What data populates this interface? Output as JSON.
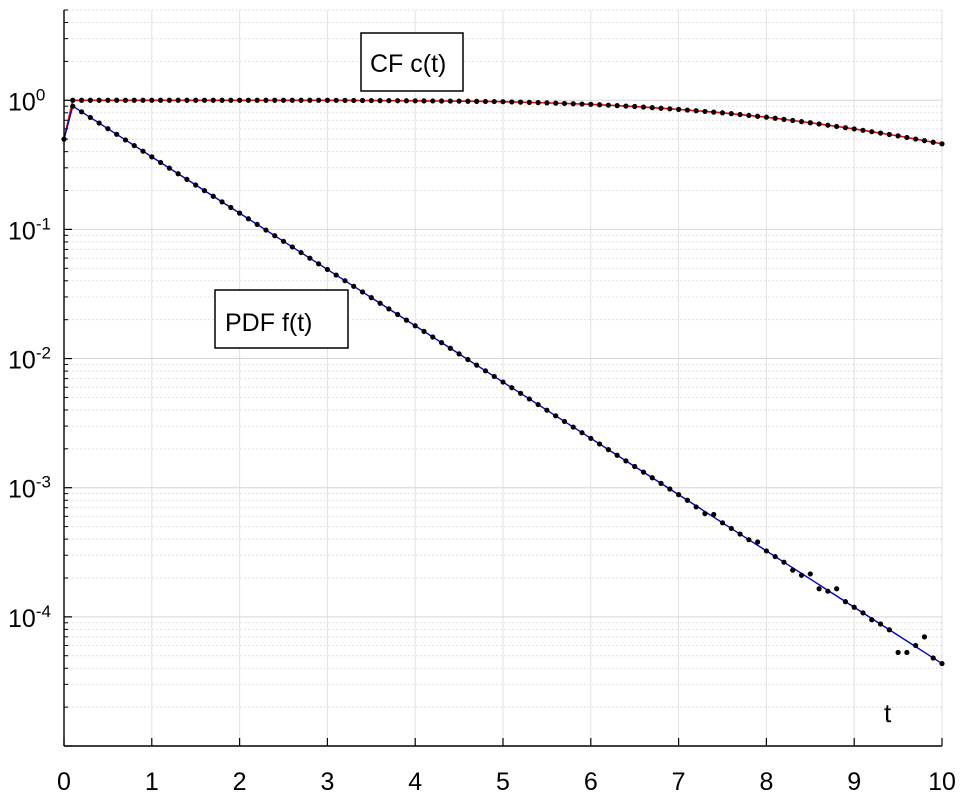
{
  "chart_data": {
    "type": "line",
    "title": "",
    "xlabel": "t",
    "ylabel": "",
    "xlim": [
      0,
      10
    ],
    "ylim": [
      1e-05,
      5
    ],
    "yscale": "log",
    "grid": true,
    "minor_grid": true,
    "x_ticks": [
      "0",
      "1",
      "2",
      "3",
      "4",
      "5",
      "6",
      "7",
      "8",
      "9",
      "10"
    ],
    "y_ticks": [
      {
        "value": 1,
        "base": "10",
        "exp": "0"
      },
      {
        "value": 0.1,
        "base": "10",
        "exp": "-1"
      },
      {
        "value": 0.01,
        "base": "10",
        "exp": "-2"
      },
      {
        "value": 0.001,
        "base": "10",
        "exp": "-3"
      },
      {
        "value": 0.0001,
        "base": "10",
        "exp": "-4"
      }
    ],
    "annotations": [
      {
        "text": "CF c(t)",
        "target": "CF"
      },
      {
        "text": "PDF f(t)",
        "target": "PDF"
      }
    ],
    "series": [
      {
        "id": "CF",
        "color": "#ff0000",
        "marker_color": "#000000",
        "x": [
          0,
          0.1,
          0.5,
          1,
          1.5,
          2,
          2.5,
          3,
          3.5,
          4,
          4.5,
          5,
          5.5,
          6,
          6.5,
          7,
          7.5,
          8,
          8.5,
          9,
          9.5,
          10
        ],
        "y": [
          0.5,
          1.0,
          1.0,
          1.0,
          1.0,
          1.0,
          1.0,
          1.0,
          0.995,
          0.99,
          0.985,
          0.975,
          0.955,
          0.93,
          0.895,
          0.85,
          0.8,
          0.74,
          0.67,
          0.6,
          0.53,
          0.46
        ]
      },
      {
        "id": "PDF",
        "color": "#0000cc",
        "marker_color": "#000000",
        "x": [
          0,
          0.1,
          0.5,
          1,
          1.5,
          2,
          2.5,
          3,
          3.5,
          4,
          4.5,
          5,
          5.5,
          6,
          6.5,
          7,
          7.5,
          8,
          8.5,
          9,
          9.5,
          10
        ],
        "y": [
          0.5,
          0.9,
          0.6,
          0.36,
          0.22,
          0.132,
          0.079,
          0.048,
          0.029,
          0.0176,
          0.0107,
          0.0065,
          0.0039,
          0.0024,
          0.00145,
          0.00088,
          0.00053,
          0.00032,
          0.000195,
          0.000118,
          7.2e-05,
          4.35e-05
        ]
      }
    ],
    "markers": {
      "CF": {
        "x": [
          0,
          0.1,
          0.2,
          0.3,
          0.4,
          0.5,
          0.6,
          0.7,
          0.8,
          0.9,
          1,
          1.1,
          1.2,
          1.3,
          1.4,
          1.5,
          1.6,
          1.7,
          1.8,
          1.9,
          2,
          2.1,
          2.2,
          2.3,
          2.4,
          2.5,
          2.6,
          2.7,
          2.8,
          2.9,
          3,
          3.1,
          3.2,
          3.3,
          3.4,
          3.5,
          3.6,
          3.7,
          3.8,
          3.9,
          4,
          4.1,
          4.2,
          4.3,
          4.4,
          4.5,
          4.6,
          4.7,
          4.8,
          4.9,
          5,
          5.1,
          5.2,
          5.3,
          5.4,
          5.5,
          5.6,
          5.7,
          5.8,
          5.9,
          6,
          6.1,
          6.2,
          6.3,
          6.4,
          6.5,
          6.6,
          6.7,
          6.8,
          6.9,
          7,
          7.1,
          7.2,
          7.3,
          7.4,
          7.5,
          7.6,
          7.7,
          7.8,
          7.9,
          8,
          8.1,
          8.2,
          8.3,
          8.4,
          8.5,
          8.6,
          8.7,
          8.8,
          8.9,
          9,
          9.1,
          9.2,
          9.3,
          9.4,
          9.5,
          9.6,
          9.7,
          9.8,
          9.9,
          10
        ],
        "model": "cf"
      },
      "PDF": {
        "x": [
          0.1,
          0.2,
          0.3,
          0.4,
          0.5,
          0.6,
          0.7,
          0.8,
          0.9,
          1,
          1.1,
          1.2,
          1.3,
          1.4,
          1.5,
          1.6,
          1.7,
          1.8,
          1.9,
          2,
          2.1,
          2.2,
          2.3,
          2.4,
          2.5,
          2.6,
          2.7,
          2.8,
          2.9,
          3,
          3.1,
          3.2,
          3.3,
          3.4,
          3.5,
          3.6,
          3.7,
          3.8,
          3.9,
          4,
          4.1,
          4.2,
          4.3,
          4.4,
          4.5,
          4.6,
          4.7,
          4.8,
          4.9,
          5,
          5.1,
          5.2,
          5.3,
          5.4,
          5.5,
          5.6,
          5.7,
          5.8,
          5.9,
          6,
          6.1,
          6.2,
          6.3,
          6.4,
          6.5,
          6.6,
          6.7,
          6.8,
          6.9,
          7,
          7.1,
          7.2,
          7.3,
          7.4,
          7.5,
          7.6,
          7.7,
          7.8,
          7.9,
          8,
          8.1,
          8.2,
          8.3,
          8.4,
          8.5,
          8.6,
          8.7,
          8.8,
          8.9,
          9,
          9.1,
          9.2,
          9.3,
          9.4,
          9.5,
          9.6,
          9.7,
          9.8,
          9.9,
          10
        ],
        "model": "pdf",
        "noisy": {
          "7.2": 0.00071,
          "7.3": 0.00063,
          "7.4": 0.00062,
          "7.9": 0.00038,
          "8.3": 0.00023,
          "8.4": 0.00021,
          "8.5": 0.000215,
          "8.6": 0.000165,
          "8.7": 0.000158,
          "8.8": 0.000165,
          "9.2": 9.5e-05,
          "9.3": 8.8e-05,
          "9.5": 5.3e-05,
          "9.6": 5.3e-05,
          "9.7": 6e-05,
          "9.8": 7e-05,
          "9.9": 4.8e-05,
          "10": 4.35e-05
        }
      }
    }
  }
}
